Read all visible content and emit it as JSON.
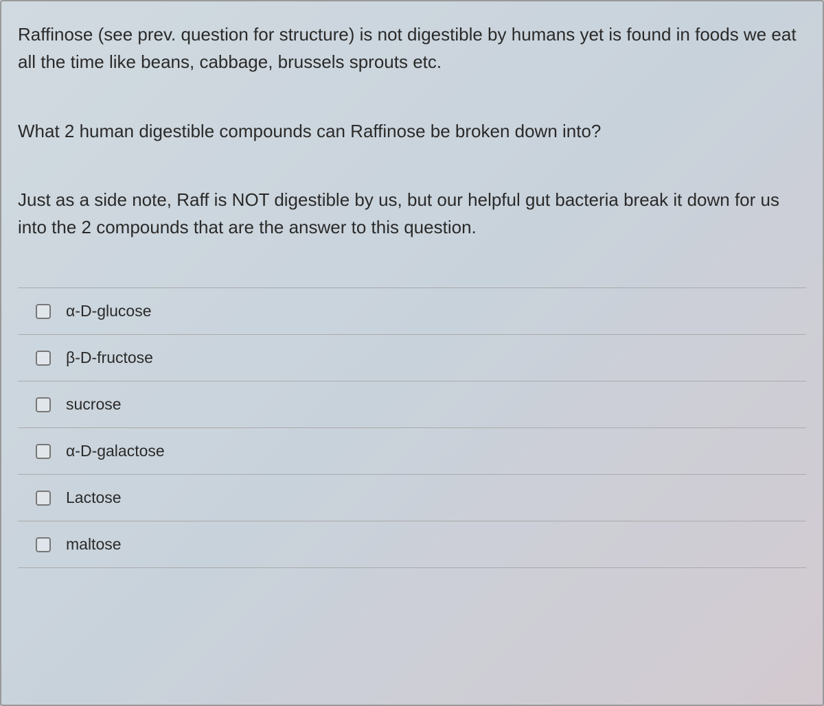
{
  "question": {
    "paragraphs": [
      "Raffinose (see prev. question for structure) is not digestible by humans yet is found in foods we eat all the time like beans, cabbage, brussels sprouts etc.",
      "What 2 human digestible compounds can Raffinose be broken down into?",
      "Just as a side note, Raff is NOT digestible by us, but our helpful gut bacteria break it down for us into the 2 compounds that are the answer to this question."
    ]
  },
  "answers": [
    {
      "label": "α-D-glucose",
      "checked": false
    },
    {
      "label": "β-D-fructose",
      "checked": false
    },
    {
      "label": "sucrose",
      "checked": false
    },
    {
      "label": "α-D-galactose",
      "checked": false
    },
    {
      "label": "Lactose",
      "checked": false
    },
    {
      "label": "maltose",
      "checked": false
    }
  ],
  "styling": {
    "background_gradient": [
      "#c5d0d8",
      "#b8c5d0",
      "#c8b8c0"
    ],
    "text_color": "#2a2a2a",
    "border_color": "#999",
    "option_border_color": "#aaa",
    "checkbox_border_color": "#777",
    "question_fontsize": 26,
    "answer_fontsize": 23
  }
}
